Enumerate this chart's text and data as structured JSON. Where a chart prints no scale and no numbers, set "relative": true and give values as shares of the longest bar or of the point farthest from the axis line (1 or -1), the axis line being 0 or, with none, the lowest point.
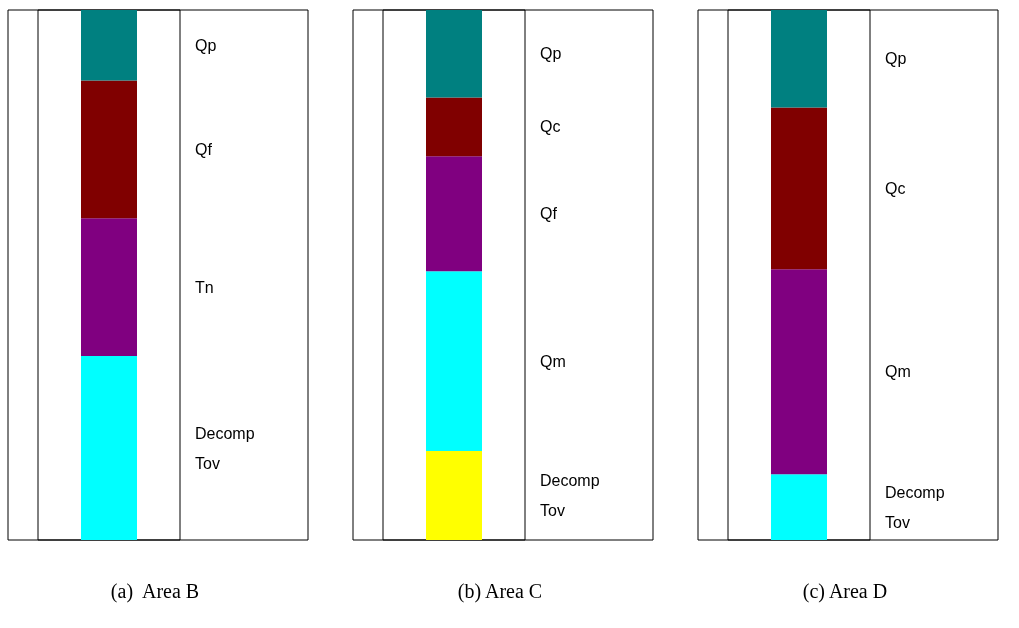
{
  "chart_data": [
    {
      "type": "bar",
      "title": "(a)  Area B",
      "stacked": true,
      "relative": true,
      "categories": [
        null
      ],
      "series": [
        {
          "name": "Decomp Tov",
          "color": "#00ffff",
          "values": [
            0.347
          ]
        },
        {
          "name": "Tn",
          "color": "#800080",
          "values": [
            0.26
          ]
        },
        {
          "name": "Qf",
          "color": "#800000",
          "values": [
            0.26
          ]
        },
        {
          "name": "Qp",
          "color": "#008080",
          "values": [
            0.133
          ]
        }
      ]
    },
    {
      "type": "bar",
      "title": "(b) Area C",
      "stacked": true,
      "relative": true,
      "categories": [
        null
      ],
      "series": [
        {
          "name": "Decomp Tov",
          "color": "#ffff00",
          "values": [
            0.168
          ]
        },
        {
          "name": "Qm",
          "color": "#00ffff",
          "values": [
            0.339
          ]
        },
        {
          "name": "Qf",
          "color": "#800080",
          "values": [
            0.217
          ]
        },
        {
          "name": "Qc",
          "color": "#800000",
          "values": [
            0.111
          ]
        },
        {
          "name": "Qp",
          "color": "#008080",
          "values": [
            0.165
          ]
        }
      ]
    },
    {
      "type": "bar",
      "title": "(c) Area D",
      "stacked": true,
      "relative": true,
      "categories": [
        null
      ],
      "series": [
        {
          "name": "Decomp Tov",
          "color": "#00ffff",
          "values": [
            0.124
          ]
        },
        {
          "name": "Qm",
          "color": "#800080",
          "values": [
            0.387
          ]
        },
        {
          "name": "Qc",
          "color": "#800000",
          "values": [
            0.305
          ]
        },
        {
          "name": "Qp",
          "color": "#008080",
          "values": [
            0.184
          ]
        }
      ]
    }
  ]
}
